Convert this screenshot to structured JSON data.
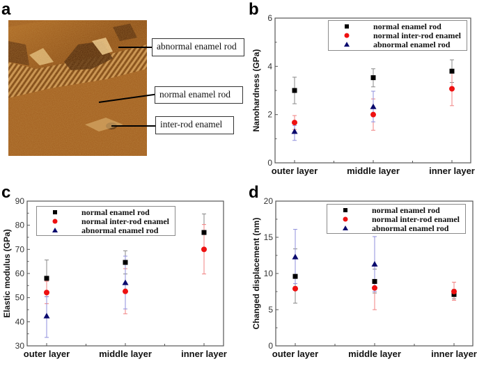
{
  "figure": {
    "panels": [
      "a",
      "b",
      "c",
      "d"
    ],
    "panel_a": {
      "letter": "a",
      "description": "AFM surface image of enamel",
      "callouts": [
        {
          "label": "abnormal enamel rod"
        },
        {
          "label": "normal enamel rod"
        },
        {
          "label": "inter-rod enamel"
        }
      ]
    },
    "colors": {
      "normal_enamel_rod": "#000000",
      "normal_inter_rod_enamel": "#ee1111",
      "abnormal_enamel_rod": "#0a0a6e",
      "err_black": "#888888",
      "err_red": "#f08080",
      "err_blue": "#8f8fdc"
    }
  },
  "chart_data": [
    {
      "panel": "b",
      "type": "scatter",
      "title": "",
      "xlabel": "",
      "ylabel": "Nanohardness (GPa)",
      "ylim": [
        0,
        6
      ],
      "yticks": [
        0,
        2,
        4,
        6
      ],
      "categories": [
        "outer layer",
        "middle layer",
        "inner layer"
      ],
      "legend": [
        "normal enamel rod",
        "normal inter-rod enamel",
        "abnormal enamel rod"
      ],
      "legend_position": "upper right",
      "grid": false,
      "series": [
        {
          "name": "normal enamel rod",
          "marker": "square",
          "values": [
            3.0,
            3.53,
            3.8
          ],
          "err_low": [
            2.45,
            3.15,
            3.33
          ],
          "err_high": [
            3.55,
            3.9,
            4.27
          ]
        },
        {
          "name": "normal inter-rod enamel",
          "marker": "circle",
          "values": [
            1.67,
            2.0,
            3.07
          ],
          "err_low": [
            1.38,
            1.35,
            2.37
          ],
          "err_high": [
            1.96,
            2.65,
            3.77
          ]
        },
        {
          "name": "abnormal enamel rod",
          "marker": "triangle",
          "values": [
            1.3,
            2.33,
            null
          ],
          "err_low": [
            0.93,
            1.7,
            null
          ],
          "err_high": [
            1.55,
            2.97,
            null
          ]
        }
      ]
    },
    {
      "panel": "c",
      "type": "scatter",
      "title": "",
      "xlabel": "",
      "ylabel": "Elastic modulus (GPa)",
      "ylim": [
        30,
        90
      ],
      "yticks": [
        30,
        40,
        50,
        60,
        70,
        80,
        90
      ],
      "categories": [
        "outer layer",
        "middle layer",
        "inner layer"
      ],
      "legend": [
        "normal enamel rod",
        "normal inter-rod enamel",
        "abnormal enamel rod"
      ],
      "legend_position": "upper left",
      "grid": false,
      "series": [
        {
          "name": "normal enamel rod",
          "marker": "square",
          "values": [
            58.0,
            64.6,
            77.0
          ],
          "err_low": [
            50.4,
            59.8,
            69.3
          ],
          "err_high": [
            65.6,
            69.4,
            84.7
          ]
        },
        {
          "name": "normal inter-rod enamel",
          "marker": "circle",
          "values": [
            52.1,
            52.6,
            70.0
          ],
          "err_low": [
            47.5,
            43.3,
            59.8
          ],
          "err_high": [
            56.8,
            62.0,
            80.3
          ]
        },
        {
          "name": "abnormal enamel rod",
          "marker": "triangle",
          "values": [
            42.4,
            56.2,
            null
          ],
          "err_low": [
            33.5,
            45.3,
            null
          ],
          "err_high": [
            50.4,
            67.2,
            null
          ]
        }
      ]
    },
    {
      "panel": "d",
      "type": "scatter",
      "title": "",
      "xlabel": "",
      "ylabel": "Changed displacement (nm)",
      "ylim": [
        0,
        20
      ],
      "yticks": [
        0,
        5,
        10,
        15,
        20
      ],
      "categories": [
        "outer layer",
        "middle layer",
        "inner layer"
      ],
      "legend": [
        "normal enamel rod",
        "normal inter-rod enamel",
        "abnormal enamel rod"
      ],
      "legend_position": "upper right",
      "grid": false,
      "series": [
        {
          "name": "normal enamel rod",
          "marker": "square",
          "values": [
            9.6,
            8.9,
            7.1
          ],
          "err_low": [
            5.9,
            7.3,
            6.5
          ],
          "err_high": [
            13.4,
            10.6,
            7.8
          ]
        },
        {
          "name": "normal inter-rod enamel",
          "marker": "circle",
          "values": [
            7.9,
            8.0,
            7.5
          ],
          "err_low": [
            7.7,
            5.0,
            6.3
          ],
          "err_high": [
            8.2,
            11.0,
            8.8
          ]
        },
        {
          "name": "abnormal enamel rod",
          "marker": "triangle",
          "values": [
            12.3,
            11.3,
            null
          ],
          "err_low": [
            8.6,
            7.5,
            null
          ],
          "err_high": [
            16.1,
            15.1,
            null
          ]
        }
      ]
    }
  ]
}
